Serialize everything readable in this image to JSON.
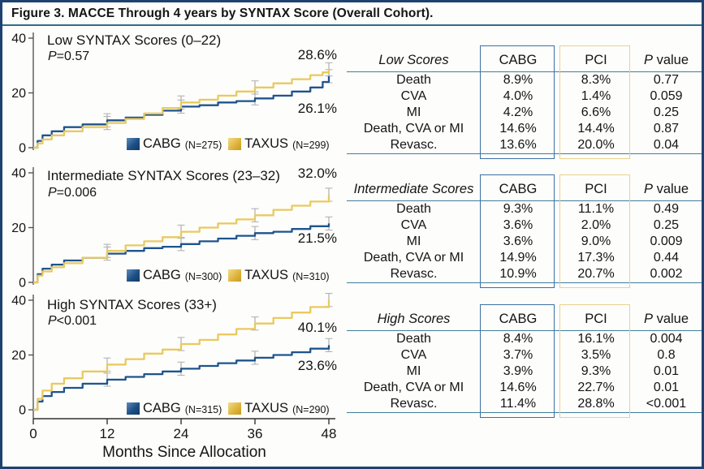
{
  "figure": {
    "title": "Figure 3. MACCE Through 4 years by SYNTAX Score (Overall Cohort)."
  },
  "colors": {
    "cabg": "#1e548c",
    "taxus": "#e9c95f",
    "table_blue_box": "#3d6fa3",
    "table_gold_box": "#ecd08e",
    "rule_teal": "#3f7f99",
    "border_navy": "#1e416f",
    "error_bar": "#b4b4b4"
  },
  "xlabel": "Months Since Allocation",
  "chart_data": [
    {
      "type": "line",
      "title": "Low SYNTAX Scores (0–22)",
      "p_prefix": "P",
      "p_text": "=0.57",
      "ylim": [
        0,
        40
      ],
      "yticks": [
        0,
        20,
        40
      ],
      "xticks": [
        0,
        12,
        24,
        36,
        48
      ],
      "series": [
        {
          "name": "CABG",
          "n_label": "(N=275)",
          "end_label": "26.1%",
          "points": [
            [
              0,
              0
            ],
            [
              0.7,
              2.5
            ],
            [
              1.5,
              4.5
            ],
            [
              3,
              6
            ],
            [
              5,
              7.5
            ],
            [
              8,
              8.5
            ],
            [
              12,
              10
            ],
            [
              15,
              11
            ],
            [
              18,
              12
            ],
            [
              21,
              13.5
            ],
            [
              24,
              15
            ],
            [
              27,
              15.5
            ],
            [
              30,
              16.5
            ],
            [
              33,
              17
            ],
            [
              36,
              18
            ],
            [
              39,
              19
            ],
            [
              42,
              20.5
            ],
            [
              45,
              22
            ],
            [
              47,
              24
            ],
            [
              48,
              26.1
            ]
          ]
        },
        {
          "name": "TAXUS",
          "n_label": "(N=299)",
          "end_label": "28.6%",
          "points": [
            [
              0,
              0
            ],
            [
              0.7,
              1.5
            ],
            [
              1.5,
              3
            ],
            [
              3,
              4.5
            ],
            [
              5,
              6
            ],
            [
              8,
              7.5
            ],
            [
              12,
              9
            ],
            [
              15,
              10.5
            ],
            [
              18,
              12.5
            ],
            [
              21,
              14.5
            ],
            [
              24,
              16.5
            ],
            [
              27,
              17.5
            ],
            [
              30,
              19
            ],
            [
              33,
              20.5
            ],
            [
              36,
              22
            ],
            [
              39,
              23.5
            ],
            [
              42,
              25
            ],
            [
              45,
              26.5
            ],
            [
              47,
              27.5
            ],
            [
              48,
              28.6
            ]
          ]
        }
      ]
    },
    {
      "type": "line",
      "title": "Intermediate SYNTAX Scores (23–32)",
      "p_prefix": "P",
      "p_text": "=0.006",
      "ylim": [
        0,
        40
      ],
      "yticks": [
        0,
        20,
        40
      ],
      "xticks": [
        0,
        12,
        24,
        36,
        48
      ],
      "series": [
        {
          "name": "CABG",
          "n_label": "(N=300)",
          "end_label": "21.5%",
          "points": [
            [
              0,
              0
            ],
            [
              0.7,
              3
            ],
            [
              1.5,
              5
            ],
            [
              3,
              6.5
            ],
            [
              5,
              8
            ],
            [
              8,
              9
            ],
            [
              12,
              10.5
            ],
            [
              15,
              11.5
            ],
            [
              18,
              12.5
            ],
            [
              21,
              13
            ],
            [
              24,
              14
            ],
            [
              27,
              15
            ],
            [
              30,
              16
            ],
            [
              33,
              17
            ],
            [
              36,
              18
            ],
            [
              39,
              18.5
            ],
            [
              42,
              19.5
            ],
            [
              45,
              20.5
            ],
            [
              48,
              21.5
            ]
          ]
        },
        {
          "name": "TAXUS",
          "n_label": "(N=310)",
          "end_label": "32.0%",
          "points": [
            [
              0,
              0
            ],
            [
              0.7,
              2.5
            ],
            [
              1.5,
              4
            ],
            [
              3,
              5.5
            ],
            [
              5,
              7
            ],
            [
              8,
              9
            ],
            [
              12,
              11.5
            ],
            [
              15,
              13.5
            ],
            [
              18,
              15
            ],
            [
              21,
              16.5
            ],
            [
              24,
              18.5
            ],
            [
              27,
              20
            ],
            [
              30,
              21.5
            ],
            [
              33,
              23
            ],
            [
              36,
              24.5
            ],
            [
              39,
              26.5
            ],
            [
              42,
              28
            ],
            [
              45,
              29.5
            ],
            [
              48,
              32
            ]
          ]
        }
      ]
    },
    {
      "type": "line",
      "title": "High SYNTAX Scores (33+)",
      "p_prefix": "P",
      "p_text": "<0.001",
      "ylim": [
        0,
        40
      ],
      "yticks": [
        0,
        20,
        40
      ],
      "xticks": [
        0,
        12,
        24,
        36,
        48
      ],
      "series": [
        {
          "name": "CABG",
          "n_label": "(N=315)",
          "end_label": "23.6%",
          "points": [
            [
              0,
              0
            ],
            [
              0.7,
              3
            ],
            [
              1.5,
              5
            ],
            [
              3,
              6.5
            ],
            [
              5,
              8
            ],
            [
              8,
              9.5
            ],
            [
              12,
              11
            ],
            [
              15,
              12
            ],
            [
              18,
              13
            ],
            [
              21,
              14
            ],
            [
              24,
              15
            ],
            [
              27,
              16
            ],
            [
              30,
              17
            ],
            [
              33,
              18
            ],
            [
              36,
              19
            ],
            [
              39,
              20
            ],
            [
              42,
              21
            ],
            [
              45,
              22.3
            ],
            [
              48,
              23.6
            ]
          ]
        },
        {
          "name": "TAXUS",
          "n_label": "(N=290)",
          "end_label": "40.1%",
          "points": [
            [
              0,
              0
            ],
            [
              0.7,
              4
            ],
            [
              1.5,
              7
            ],
            [
              3,
              9.5
            ],
            [
              5,
              11.5
            ],
            [
              8,
              14
            ],
            [
              12,
              16.5
            ],
            [
              15,
              18.5
            ],
            [
              18,
              20.5
            ],
            [
              21,
              22
            ],
            [
              24,
              24
            ],
            [
              27,
              25.5
            ],
            [
              30,
              27.5
            ],
            [
              33,
              29.5
            ],
            [
              36,
              31.5
            ],
            [
              39,
              33.5
            ],
            [
              42,
              35.5
            ],
            [
              45,
              37.5
            ],
            [
              48,
              40.1
            ]
          ]
        }
      ]
    }
  ],
  "tables": [
    {
      "title": "Low Scores",
      "columns": [
        "CABG",
        "PCI",
        "P value"
      ],
      "rows": [
        [
          "Death",
          "8.9%",
          "8.3%",
          "0.77"
        ],
        [
          "CVA",
          "4.0%",
          "1.4%",
          "0.059"
        ],
        [
          "MI",
          "4.2%",
          "6.6%",
          "0.25"
        ],
        [
          "Death, CVA or MI",
          "14.6%",
          "14.4%",
          "0.87"
        ],
        [
          "Revasc.",
          "13.6%",
          "20.0%",
          "0.04"
        ]
      ]
    },
    {
      "title": "Intermediate Scores",
      "columns": [
        "CABG",
        "PCI",
        "P value"
      ],
      "rows": [
        [
          "Death",
          "9.3%",
          "11.1%",
          "0.49"
        ],
        [
          "CVA",
          "3.6%",
          "2.0%",
          "0.25"
        ],
        [
          "MI",
          "3.6%",
          "9.0%",
          "0.009"
        ],
        [
          "Death, CVA or MI",
          "14.9%",
          "17.3%",
          "0.44"
        ],
        [
          "Revasc.",
          "10.9%",
          "20.7%",
          "0.002"
        ]
      ]
    },
    {
      "title": "High Scores",
      "columns": [
        "CABG",
        "PCI",
        "P value"
      ],
      "rows": [
        [
          "Death",
          "8.4%",
          "16.1%",
          "0.004"
        ],
        [
          "CVA",
          "3.7%",
          "3.5%",
          "0.8"
        ],
        [
          "MI",
          "3.9%",
          "9.3%",
          "0.01"
        ],
        [
          "Death, CVA or MI",
          "14.6%",
          "22.7%",
          "0.01"
        ],
        [
          "Revasc.",
          "11.4%",
          "28.8%",
          "<0.001"
        ]
      ]
    }
  ]
}
